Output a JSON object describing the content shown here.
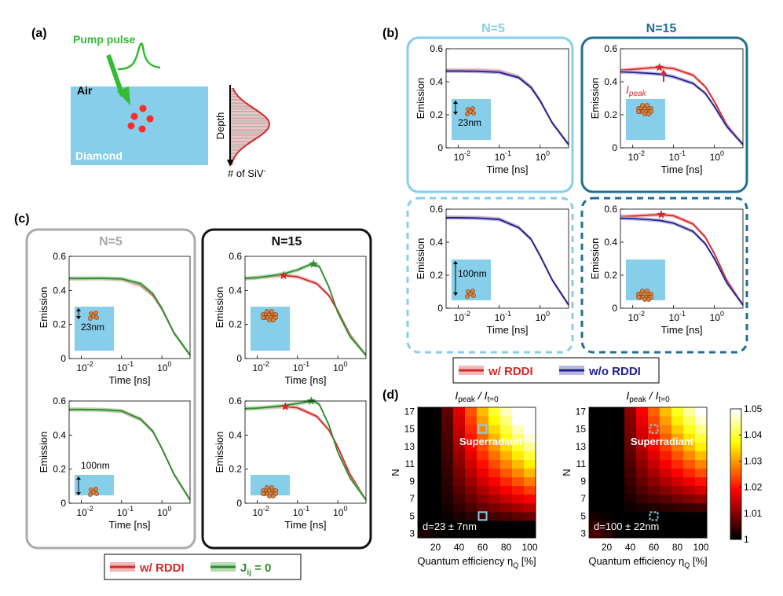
{
  "panels": {
    "a": "(a)",
    "b": "(b)",
    "c": "(c)",
    "d": "(d)"
  },
  "schematic": {
    "pump_label": "Pump pulse",
    "air_label": "Air",
    "diamond_label": "Diamond",
    "depth_label": "Depth",
    "count_label": "# of SiV",
    "count_sup": "-"
  },
  "colors": {
    "rddi": "#d62728",
    "wo_rddi": "#1f1f8f",
    "jij": "#2e8b2e",
    "diamond": "#87ceeb",
    "frame_b_n5": "#87ceeb",
    "frame_b_n15": "#1f6f94",
    "frame_c_n5": "#aaaaaa",
    "frame_c_n15": "#111111",
    "pump": "#33bb33"
  },
  "frames": {
    "b_n5": "N=5",
    "b_n15": "N=15",
    "c_n5": "N=5",
    "c_n15": "N=15"
  },
  "axis_common": {
    "ylabel": "Emission",
    "xlabel": "Time [ns]",
    "yticks": [
      "0",
      "0.2",
      "0.4",
      "0.6"
    ],
    "xticks": [
      {
        "base": "10",
        "exp": "-2"
      },
      {
        "base": "10",
        "exp": "-1"
      },
      {
        "base": "10",
        "exp": "0"
      }
    ]
  },
  "annotations": {
    "ipeak_main": "I",
    "ipeak_sub": "peak",
    "depth_23": "23nm",
    "depth_100": "100nm"
  },
  "legend_b": {
    "rddi": "w/ RDDI",
    "wo": "w/o RDDI"
  },
  "legend_c": {
    "rddi": "w/ RDDI",
    "jij_main": "J",
    "jij_sub": "ij",
    "jij_tail": " = 0"
  },
  "heatmap_common": {
    "title_main": "I",
    "title_sub1": "peak",
    "title_mid": " / I",
    "title_sub2": "t=0",
    "ylabel": "N",
    "xlabel_main": "Quantum efficiency η",
    "xlabel_sub": "Q",
    "xlabel_tail": " [%]",
    "yticks": [
      "3",
      "5",
      "7",
      "9",
      "11",
      "13",
      "15",
      "17"
    ],
    "xticks": [
      "20",
      "40",
      "60",
      "80",
      "100"
    ],
    "region_label": "Superradiant"
  },
  "heatmap_d1": {
    "annotation": "d=23 ± 7nm"
  },
  "heatmap_d2": {
    "annotation": "d=100 ± 22nm"
  },
  "colorbar": {
    "ticks": [
      "1",
      "1.01",
      "1.02",
      "1.03",
      "1.04",
      "1.05"
    ]
  },
  "chart_data": [
    {
      "type": "line",
      "id": "b_n5_23",
      "title": "N=5, d=23nm (w/ vs w/o RDDI)",
      "xscale": "log",
      "xlim": [
        0.005,
        5
      ],
      "ylim": [
        0,
        0.6
      ],
      "xlabel": "Time [ns]",
      "ylabel": "Emission",
      "series": [
        {
          "name": "w/ RDDI",
          "x": [
            0.005,
            0.01,
            0.03,
            0.1,
            0.3,
            0.6,
            1,
            2,
            5
          ],
          "values": [
            0.47,
            0.47,
            0.47,
            0.465,
            0.43,
            0.37,
            0.29,
            0.15,
            0.02
          ]
        },
        {
          "name": "w/o RDDI",
          "x": [
            0.005,
            0.01,
            0.03,
            0.1,
            0.3,
            0.6,
            1,
            2,
            5
          ],
          "values": [
            0.465,
            0.465,
            0.463,
            0.457,
            0.425,
            0.365,
            0.285,
            0.15,
            0.02
          ]
        }
      ]
    },
    {
      "type": "line",
      "id": "b_n15_23",
      "title": "N=15, d=23nm (w/ vs w/o RDDI)",
      "xscale": "log",
      "xlim": [
        0.005,
        5
      ],
      "ylim": [
        0,
        0.6
      ],
      "series": [
        {
          "name": "w/ RDDI",
          "x": [
            0.005,
            0.01,
            0.03,
            0.05,
            0.1,
            0.3,
            0.6,
            1,
            2,
            5
          ],
          "values": [
            0.47,
            0.475,
            0.485,
            0.487,
            0.48,
            0.44,
            0.37,
            0.28,
            0.14,
            0.02
          ]
        },
        {
          "name": "w/o RDDI",
          "x": [
            0.005,
            0.01,
            0.03,
            0.05,
            0.1,
            0.3,
            0.6,
            1,
            2,
            5
          ],
          "values": [
            0.46,
            0.457,
            0.45,
            0.445,
            0.43,
            0.39,
            0.33,
            0.25,
            0.13,
            0.02
          ]
        }
      ],
      "peak": {
        "x": 0.045,
        "y": 0.487
      }
    },
    {
      "type": "line",
      "id": "b_n5_100",
      "title": "N=5, d=100nm (w/ vs w/o RDDI)",
      "xscale": "log",
      "xlim": [
        0.005,
        5
      ],
      "ylim": [
        0,
        0.6
      ],
      "series": [
        {
          "name": "w/ RDDI",
          "x": [
            0.005,
            0.01,
            0.03,
            0.1,
            0.3,
            0.6,
            1,
            2,
            5
          ],
          "values": [
            0.55,
            0.55,
            0.548,
            0.54,
            0.49,
            0.42,
            0.32,
            0.17,
            0.02
          ]
        },
        {
          "name": "w/o RDDI",
          "x": [
            0.005,
            0.01,
            0.03,
            0.1,
            0.3,
            0.6,
            1,
            2,
            5
          ],
          "values": [
            0.548,
            0.548,
            0.546,
            0.538,
            0.488,
            0.418,
            0.318,
            0.17,
            0.02
          ]
        }
      ]
    },
    {
      "type": "line",
      "id": "b_n15_100",
      "title": "N=15, d=100nm (w/ vs w/o RDDI)",
      "xscale": "log",
      "xlim": [
        0.005,
        5
      ],
      "ylim": [
        0,
        0.6
      ],
      "series": [
        {
          "name": "w/ RDDI",
          "x": [
            0.005,
            0.01,
            0.03,
            0.05,
            0.1,
            0.3,
            0.6,
            1,
            2,
            5
          ],
          "values": [
            0.555,
            0.558,
            0.565,
            0.567,
            0.56,
            0.51,
            0.43,
            0.33,
            0.17,
            0.02
          ]
        },
        {
          "name": "w/o RDDI",
          "x": [
            0.005,
            0.01,
            0.03,
            0.05,
            0.1,
            0.3,
            0.6,
            1,
            2,
            5
          ],
          "values": [
            0.545,
            0.543,
            0.535,
            0.53,
            0.515,
            0.465,
            0.39,
            0.3,
            0.155,
            0.02
          ]
        }
      ],
      "peak": {
        "x": 0.05,
        "y": 0.567
      }
    },
    {
      "type": "line",
      "id": "c_n5_23",
      "title": "N=5, d=23nm (w/ RDDI vs Jij=0)",
      "xscale": "log",
      "xlim": [
        0.005,
        5
      ],
      "ylim": [
        0,
        0.6
      ],
      "series": [
        {
          "name": "w/ RDDI",
          "x": [
            0.005,
            0.01,
            0.03,
            0.1,
            0.3,
            0.6,
            1,
            2,
            5
          ],
          "values": [
            0.47,
            0.47,
            0.47,
            0.465,
            0.43,
            0.37,
            0.29,
            0.15,
            0.02
          ]
        },
        {
          "name": "Jij = 0",
          "x": [
            0.005,
            0.01,
            0.03,
            0.1,
            0.3,
            0.6,
            1,
            2,
            5
          ],
          "values": [
            0.47,
            0.47,
            0.471,
            0.468,
            0.44,
            0.38,
            0.295,
            0.15,
            0.02
          ]
        }
      ]
    },
    {
      "type": "line",
      "id": "c_n15_23",
      "title": "N=15, d=23nm (w/ RDDI vs Jij=0)",
      "xscale": "log",
      "xlim": [
        0.005,
        5
      ],
      "ylim": [
        0,
        0.6
      ],
      "series": [
        {
          "name": "w/ RDDI",
          "x": [
            0.005,
            0.01,
            0.03,
            0.05,
            0.1,
            0.3,
            0.6,
            1,
            2,
            5
          ],
          "values": [
            0.47,
            0.475,
            0.485,
            0.487,
            0.48,
            0.44,
            0.37,
            0.28,
            0.14,
            0.02
          ]
        },
        {
          "name": "Jij = 0",
          "x": [
            0.005,
            0.01,
            0.03,
            0.05,
            0.1,
            0.2,
            0.25,
            0.35,
            0.6,
            1,
            2,
            5
          ],
          "values": [
            0.47,
            0.475,
            0.49,
            0.5,
            0.52,
            0.55,
            0.555,
            0.54,
            0.42,
            0.27,
            0.13,
            0.02
          ]
        }
      ],
      "peak": {
        "x": 0.045,
        "y": 0.487
      },
      "peak2": {
        "x": 0.25,
        "y": 0.555
      }
    },
    {
      "type": "line",
      "id": "c_n5_100",
      "title": "N=5, d=100nm (w/ RDDI vs Jij=0)",
      "xscale": "log",
      "xlim": [
        0.005,
        5
      ],
      "ylim": [
        0,
        0.6
      ],
      "series": [
        {
          "name": "w/ RDDI",
          "x": [
            0.005,
            0.01,
            0.03,
            0.1,
            0.3,
            0.6,
            1,
            2,
            5
          ],
          "values": [
            0.55,
            0.55,
            0.548,
            0.54,
            0.49,
            0.42,
            0.32,
            0.17,
            0.02
          ]
        },
        {
          "name": "Jij = 0",
          "x": [
            0.005,
            0.01,
            0.03,
            0.1,
            0.3,
            0.6,
            1,
            2,
            5
          ],
          "values": [
            0.55,
            0.55,
            0.549,
            0.542,
            0.493,
            0.422,
            0.322,
            0.17,
            0.02
          ]
        }
      ]
    },
    {
      "type": "line",
      "id": "c_n15_100",
      "title": "N=15, d=100nm (w/ RDDI vs Jij=0)",
      "xscale": "log",
      "xlim": [
        0.005,
        5
      ],
      "ylim": [
        0,
        0.6
      ],
      "series": [
        {
          "name": "w/ RDDI",
          "x": [
            0.005,
            0.01,
            0.03,
            0.05,
            0.1,
            0.3,
            0.6,
            1,
            2,
            5
          ],
          "values": [
            0.555,
            0.558,
            0.565,
            0.567,
            0.56,
            0.51,
            0.43,
            0.33,
            0.17,
            0.02
          ]
        },
        {
          "name": "Jij = 0",
          "x": [
            0.005,
            0.01,
            0.03,
            0.05,
            0.1,
            0.2,
            0.25,
            0.35,
            0.6,
            1,
            2,
            5
          ],
          "values": [
            0.555,
            0.558,
            0.568,
            0.575,
            0.585,
            0.598,
            0.6,
            0.58,
            0.46,
            0.3,
            0.15,
            0.02
          ]
        }
      ],
      "peak": {
        "x": 0.05,
        "y": 0.567
      },
      "peak2": {
        "x": 0.22,
        "y": 0.6
      }
    },
    {
      "type": "heatmap",
      "id": "d1",
      "title": "Ipeak / It=0",
      "xlabel": "Quantum efficiency ηQ [%]",
      "ylabel": "N",
      "x_range": [
        10,
        100
      ],
      "y_range": [
        3,
        17
      ],
      "cols": 10,
      "rows": 15,
      "color_range": [
        1,
        1.05
      ],
      "shift": 0,
      "markers": [
        {
          "eta": 60,
          "N": 15,
          "style": "solid"
        },
        {
          "eta": 60,
          "N": 5,
          "style": "solid"
        }
      ]
    },
    {
      "type": "heatmap",
      "id": "d2",
      "title": "Ipeak / It=0",
      "xlabel": "Quantum efficiency ηQ [%]",
      "ylabel": "N",
      "x_range": [
        10,
        100
      ],
      "y_range": [
        3,
        17
      ],
      "cols": 10,
      "rows": 15,
      "color_range": [
        1,
        1.05
      ],
      "shift": 0.7,
      "markers": [
        {
          "eta": 60,
          "N": 15,
          "style": "dashed"
        },
        {
          "eta": 60,
          "N": 5,
          "style": "dashed"
        }
      ]
    }
  ]
}
